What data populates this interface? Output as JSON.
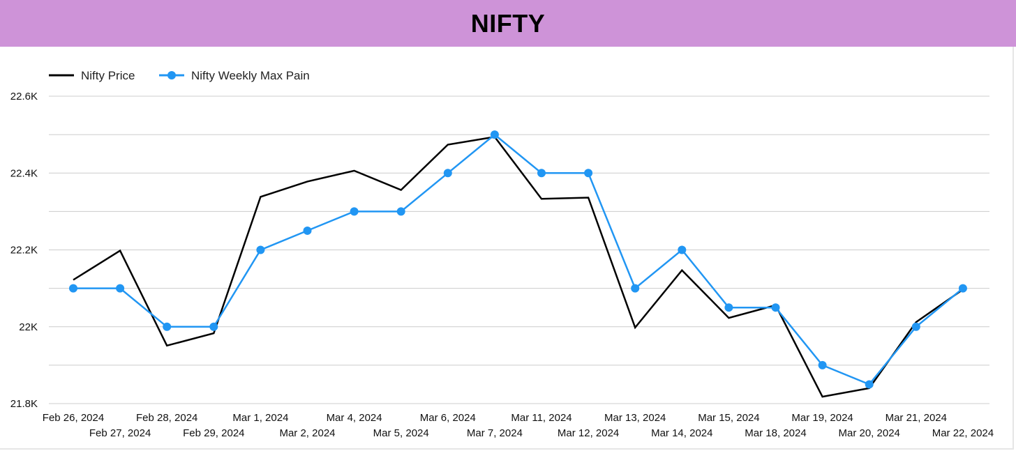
{
  "title": "NIFTY",
  "colors": {
    "title_bar": "#ce93d8",
    "price_line": "#000000",
    "max_pain_line": "#2196f3",
    "grid": "#cccccc"
  },
  "chart_data": {
    "type": "line",
    "title": "",
    "xlabel": "",
    "ylabel": "",
    "ylim": [
      21800,
      22600
    ],
    "y_ticks": [
      21800,
      22000,
      22200,
      22400,
      22600
    ],
    "y_tick_labels": [
      "21.8K",
      "22K",
      "22.2K",
      "22.4K",
      "22.6K"
    ],
    "grid": true,
    "legend_position": "top-left",
    "categories": [
      "Feb 26, 2024",
      "Feb 27, 2024",
      "Feb 28, 2024",
      "Feb 29, 2024",
      "Mar 1, 2024",
      "Mar 2, 2024",
      "Mar 4, 2024",
      "Mar 5, 2024",
      "Mar 6, 2024",
      "Mar 7, 2024",
      "Mar 11, 2024",
      "Mar 12, 2024",
      "Mar 13, 2024",
      "Mar 14, 2024",
      "Mar 15, 2024",
      "Mar 18, 2024",
      "Mar 19, 2024",
      "Mar 20, 2024",
      "Mar 21, 2024",
      "Mar 22, 2024"
    ],
    "series": [
      {
        "name": "Nifty Price",
        "color": "#000000",
        "markers": false,
        "values": [
          22122,
          22198,
          21951,
          21983,
          22338,
          22378,
          22406,
          22356,
          22474,
          22494,
          22333,
          22336,
          21998,
          22147,
          22023,
          22056,
          21818,
          21840,
          22012,
          22097
        ]
      },
      {
        "name": "Nifty Weekly Max Pain",
        "color": "#2196f3",
        "markers": true,
        "values": [
          22100,
          22100,
          22000,
          22000,
          22200,
          22250,
          22300,
          22300,
          22400,
          22500,
          22400,
          22400,
          22100,
          22200,
          22050,
          22050,
          21900,
          21850,
          22000,
          22100
        ]
      }
    ]
  }
}
